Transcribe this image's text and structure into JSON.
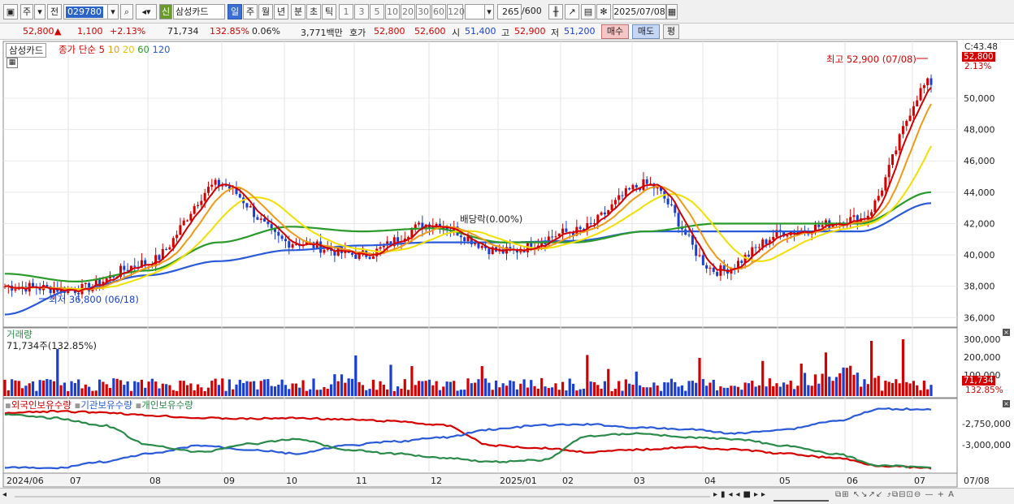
{
  "toolbar": {
    "market": "주",
    "prev": "전",
    "code": "029780",
    "stock_badge": "신",
    "stock_name": "삼성카드",
    "periods": [
      "일",
      "주",
      "월",
      "년",
      "분",
      "초",
      "틱"
    ],
    "selected_period": "일",
    "intervals": [
      "1",
      "3",
      "5",
      "10",
      "20",
      "30",
      "60",
      "120"
    ],
    "count": "265",
    "count_total": "/600",
    "date": "2025/07/08"
  },
  "quote": {
    "price": "52,800",
    "arrow": "▲",
    "change": "1,100",
    "change_pct": "+2.13%",
    "volume": "71,734",
    "volume_ratio": "132.85%",
    "turnover_pct": "0.06%",
    "value": "3,771백만",
    "bid_label": "호가",
    "ask": "52,800",
    "bid": "52,600",
    "open_label": "시",
    "open": "51,400",
    "high_label": "고",
    "high": "52,900",
    "low_label": "저",
    "low": "51,200",
    "buy": "매수",
    "sell": "매도",
    "eval": "평"
  },
  "price_panel": {
    "title": "삼성카드",
    "ma_label": "종가 단순",
    "ma_periods": [
      "5",
      "10",
      "20",
      "60",
      "120"
    ],
    "ma_colors": [
      "#d40000",
      "#f09a14",
      "#f0e000",
      "#2a9a2a",
      "#2a5ad8"
    ],
    "high_annotation": "최고 52,900 (07/08)",
    "low_annotation": "최저 36,800 (06/18)",
    "dividend_annotation": "배당락(0.00%)",
    "axis_top_labels": [
      "C:43.48",
      "52,800",
      "2.13%"
    ],
    "y_ticks": [
      "50,000",
      "48,000",
      "46,000",
      "44,000",
      "42,000",
      "40,000",
      "38,000",
      "36,000"
    ]
  },
  "volume_panel": {
    "title": "거래량",
    "readout": "71,734주(132.85%)",
    "y_ticks": [
      "300,000",
      "200,000",
      "100,000"
    ],
    "current": "71,734",
    "current_pct": "132.85%"
  },
  "holding_panel": {
    "series": [
      {
        "name": "외국인보유수량",
        "color": "#d40000"
      },
      {
        "name": "기관보유수량",
        "color": "#2a5ad8"
      },
      {
        "name": "개인보유수량",
        "color": "#2a8a4a"
      }
    ],
    "y_ticks": [
      "-2,750,000",
      "-3,000,000"
    ]
  },
  "x_axis": {
    "labels": [
      "2024/06",
      "07",
      "08",
      "09",
      "10",
      "11",
      "12",
      "2025/01",
      "02",
      "03",
      "04",
      "05",
      "06",
      "07"
    ],
    "right_label": "07/08"
  },
  "chart_data": {
    "type": "line",
    "x": [
      "2024/06",
      "07",
      "08",
      "09",
      "10",
      "11",
      "12",
      "2025/01",
      "02",
      "03",
      "04",
      "05",
      "06",
      "07"
    ],
    "series": [
      {
        "name": "5",
        "values": [
          38000,
          37800,
          39500,
          44500,
          40800,
          40000,
          42000,
          40200,
          41500,
          44500,
          39000,
          41500,
          42300,
          51000
        ]
      },
      {
        "name": "60",
        "values": [
          38800,
          38300,
          39000,
          40800,
          41800,
          41500,
          41700,
          40800,
          40800,
          41500,
          42000,
          42000,
          42000,
          44000
        ]
      },
      {
        "name": "120",
        "values": [
          36200,
          37800,
          38700,
          39600,
          40300,
          40600,
          40800,
          40800,
          40900,
          41500,
          41500,
          41500,
          41500,
          43300
        ]
      }
    ],
    "ylim": [
      35500,
      53000
    ]
  }
}
